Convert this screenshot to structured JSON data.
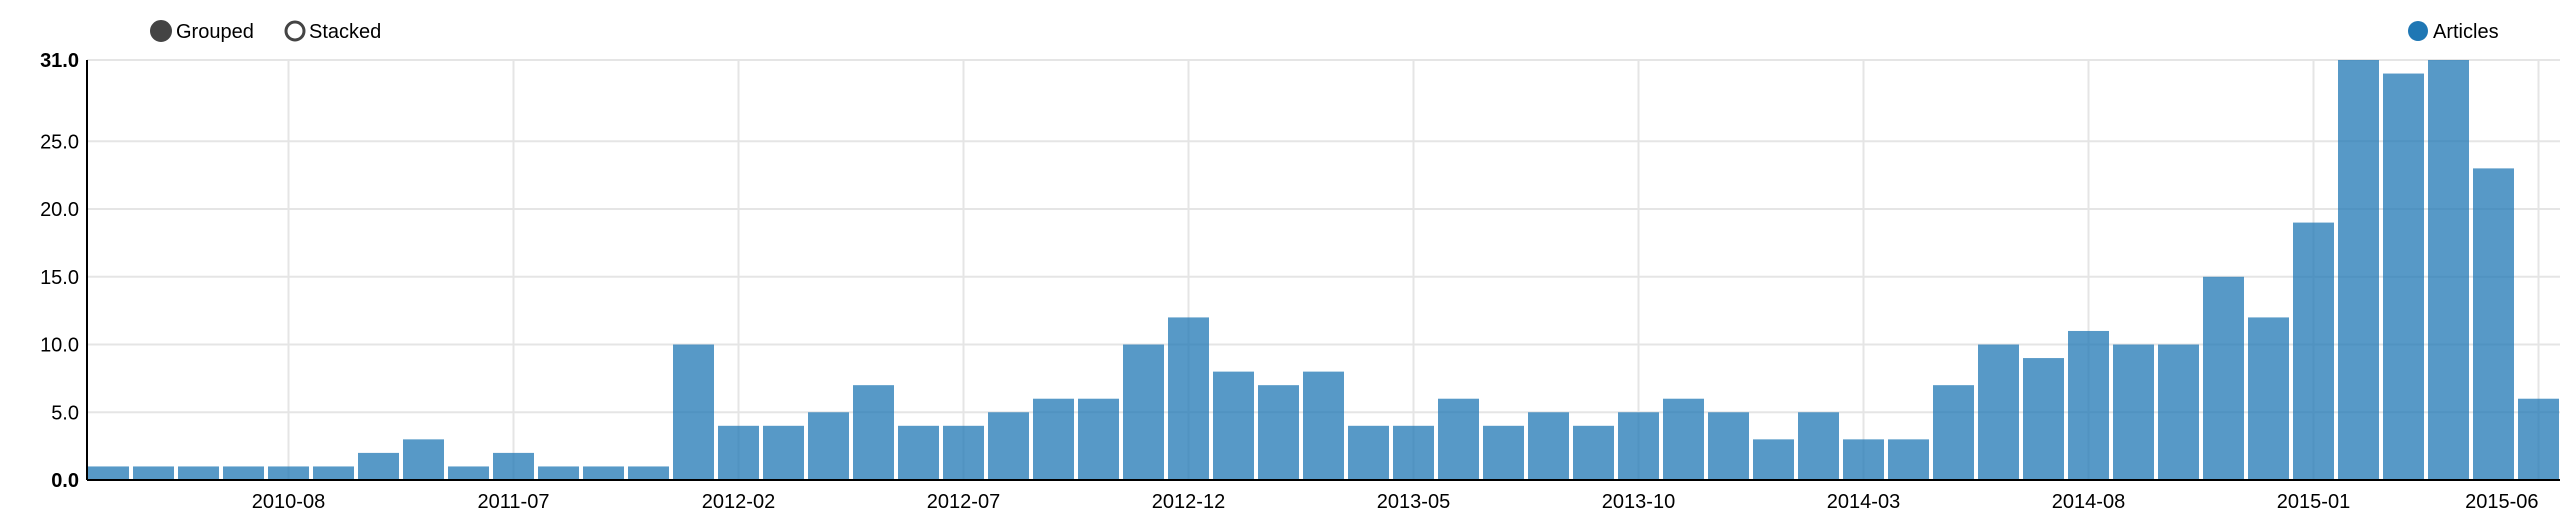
{
  "legend": {
    "controls": [
      {
        "label": "Grouped",
        "selected": true
      },
      {
        "label": "Stacked",
        "selected": false
      }
    ],
    "series": [
      {
        "label": "Articles",
        "color": "#1f77b4"
      }
    ]
  },
  "chart_data": {
    "type": "bar",
    "mode": "grouped",
    "ylim": [
      0,
      31
    ],
    "y_ticks": [
      "0.0",
      "5.0",
      "10.0",
      "15.0",
      "20.0",
      "25.0",
      "31.0"
    ],
    "x_ticks": [
      "2010-08",
      "2011-07",
      "2012-02",
      "2012-07",
      "2012-12",
      "2013-05",
      "2013-10",
      "2014-03",
      "2014-08",
      "2015-01",
      "2015-06"
    ],
    "grid": true,
    "legend_position": "top-right",
    "series": [
      {
        "name": "Articles",
        "color": "#1f77b4",
        "values": [
          1,
          1,
          1,
          1,
          1,
          1,
          2,
          3,
          1,
          2,
          1,
          1,
          1,
          10,
          4,
          4,
          5,
          7,
          4,
          4,
          5,
          6,
          6,
          10,
          12,
          8,
          7,
          8,
          4,
          4,
          6,
          4,
          5,
          4,
          5,
          6,
          5,
          3,
          5,
          3,
          3,
          7,
          10,
          9,
          11,
          10,
          10,
          15,
          12,
          19,
          31,
          30,
          31,
          23,
          6
        ]
      }
    ]
  }
}
